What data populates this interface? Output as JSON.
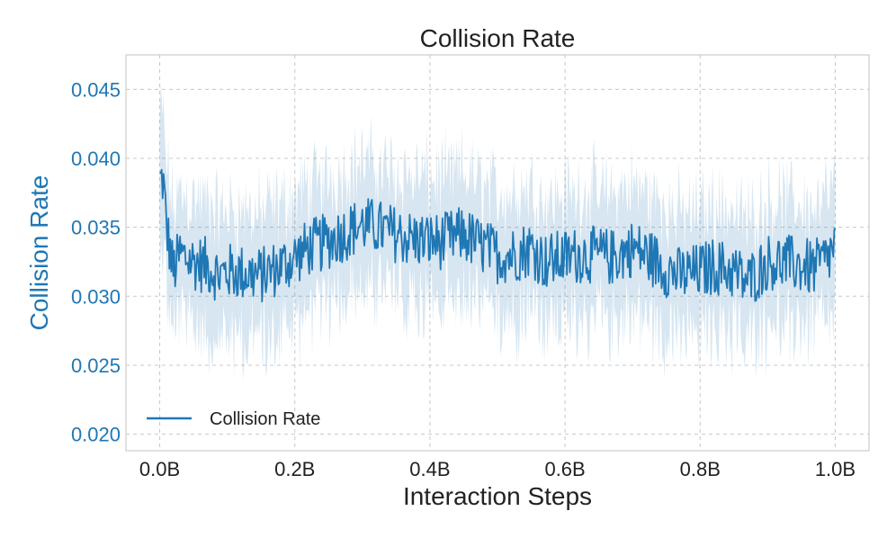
{
  "colors": {
    "series": "#1f77b4",
    "band": "#1f77b4",
    "text": "#222222"
  },
  "chart_data": {
    "type": "line",
    "title": "Collision Rate",
    "xlabel": "Interaction Steps",
    "ylabel": "Collision Rate",
    "xlim": [
      -0.05,
      1.05
    ],
    "ylim": [
      0.0188,
      0.0475
    ],
    "x_ticks": [
      0.0,
      0.2,
      0.4,
      0.6,
      0.8,
      1.0
    ],
    "x_tick_labels": [
      "0.0B",
      "0.2B",
      "0.4B",
      "0.6B",
      "0.8B",
      "1.0B"
    ],
    "y_ticks": [
      0.02,
      0.025,
      0.03,
      0.035,
      0.04,
      0.045
    ],
    "y_tick_labels": [
      "0.020",
      "0.025",
      "0.030",
      "0.035",
      "0.040",
      "0.045"
    ],
    "grid": true,
    "legend": {
      "entries": [
        "Collision Rate"
      ],
      "location": "lower-left"
    },
    "series": [
      {
        "name": "Collision Rate",
        "x": [
          0.0,
          0.005,
          0.01,
          0.02,
          0.03,
          0.05,
          0.07,
          0.09,
          0.1,
          0.12,
          0.15,
          0.18,
          0.2,
          0.22,
          0.25,
          0.27,
          0.3,
          0.32,
          0.35,
          0.37,
          0.4,
          0.42,
          0.45,
          0.47,
          0.5,
          0.52,
          0.55,
          0.57,
          0.6,
          0.62,
          0.65,
          0.67,
          0.7,
          0.72,
          0.75,
          0.77,
          0.8,
          0.82,
          0.85,
          0.87,
          0.9,
          0.92,
          0.95,
          0.97,
          0.99,
          1.0
        ],
        "y": [
          0.0383,
          0.0385,
          0.035,
          0.0318,
          0.033,
          0.0325,
          0.0322,
          0.0315,
          0.0318,
          0.0317,
          0.0315,
          0.0322,
          0.0328,
          0.0335,
          0.034,
          0.0345,
          0.0352,
          0.035,
          0.0345,
          0.0342,
          0.034,
          0.034,
          0.0345,
          0.0338,
          0.033,
          0.033,
          0.0335,
          0.0325,
          0.0328,
          0.033,
          0.033,
          0.0328,
          0.0335,
          0.033,
          0.032,
          0.0315,
          0.0318,
          0.0322,
          0.0318,
          0.031,
          0.0325,
          0.0325,
          0.0322,
          0.032,
          0.0328,
          0.0338
        ],
        "band_halfwidth": 0.0045
      }
    ]
  }
}
